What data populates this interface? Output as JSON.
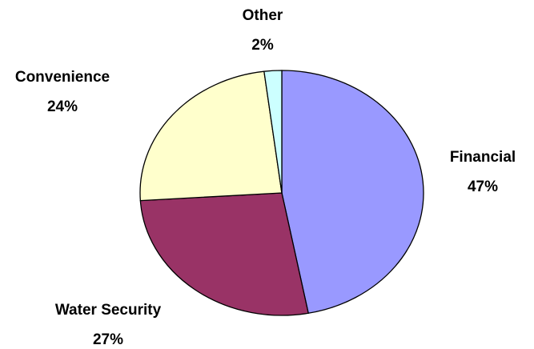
{
  "chart_data": {
    "type": "pie",
    "categories": [
      "Financial",
      "Water Security",
      "Convenience",
      "Other"
    ],
    "values": [
      47,
      27,
      24,
      2
    ],
    "value_labels": [
      "47%",
      "27%",
      "24%",
      "2%"
    ],
    "colors": [
      "#9999ff",
      "#993366",
      "#ffffcc",
      "#ccffff"
    ]
  }
}
